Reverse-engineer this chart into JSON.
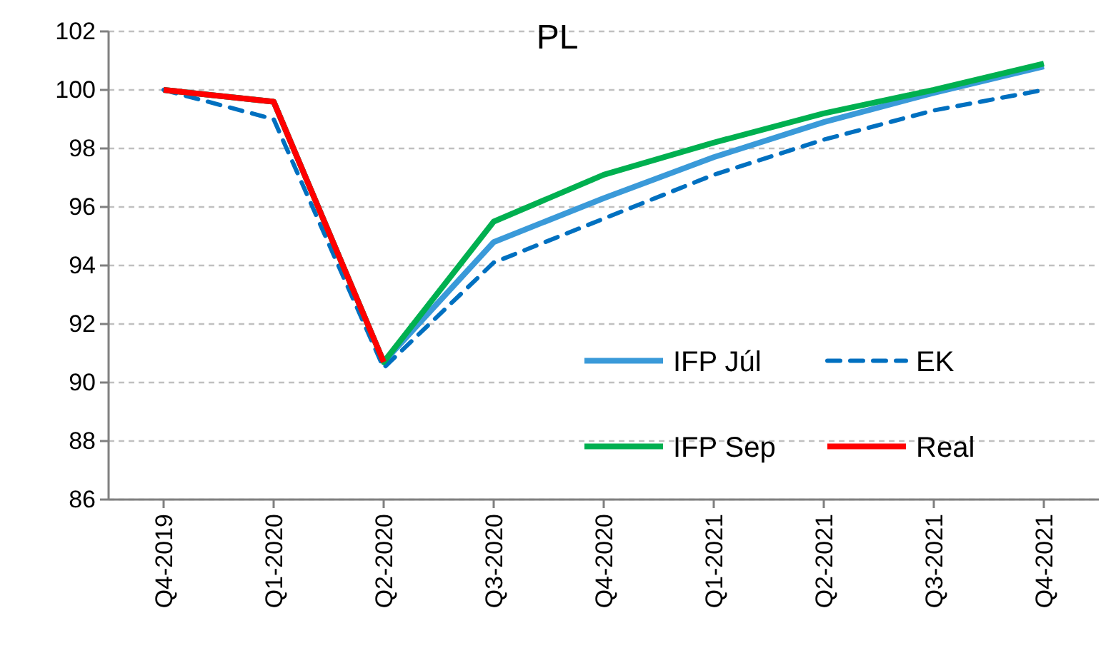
{
  "chart_data": {
    "type": "line",
    "title": "PL",
    "categories": [
      "Q4-2019",
      "Q1-2020",
      "Q2-2020",
      "Q3-2020",
      "Q4-2020",
      "Q1-2021",
      "Q2-2021",
      "Q3-2021",
      "Q4-2021"
    ],
    "series": [
      {
        "name": "IFP Júl",
        "color": "#3a9ad9",
        "line_style": "solid",
        "values": [
          100,
          99.6,
          90.7,
          94.8,
          96.3,
          97.7,
          98.9,
          99.9,
          100.8
        ]
      },
      {
        "name": "EK",
        "color": "#0070c0",
        "line_style": "dashed",
        "values": [
          100,
          99.0,
          90.5,
          94.1,
          95.6,
          97.1,
          98.3,
          99.3,
          100.0
        ]
      },
      {
        "name": "IFP Sep",
        "color": "#00b050",
        "line_style": "solid",
        "values": [
          100,
          99.6,
          90.7,
          95.5,
          97.1,
          98.2,
          99.2,
          100.0,
          100.9
        ]
      },
      {
        "name": "Real",
        "color": "#ff0000",
        "line_style": "solid",
        "values": [
          100,
          99.6,
          90.7,
          null,
          null,
          null,
          null,
          null,
          null
        ]
      }
    ],
    "ylim": [
      86,
      102
    ],
    "yticks": [
      86,
      88,
      90,
      92,
      94,
      96,
      98,
      100,
      102
    ],
    "grid": "y",
    "legend": "bottom right",
    "marker": "none"
  }
}
